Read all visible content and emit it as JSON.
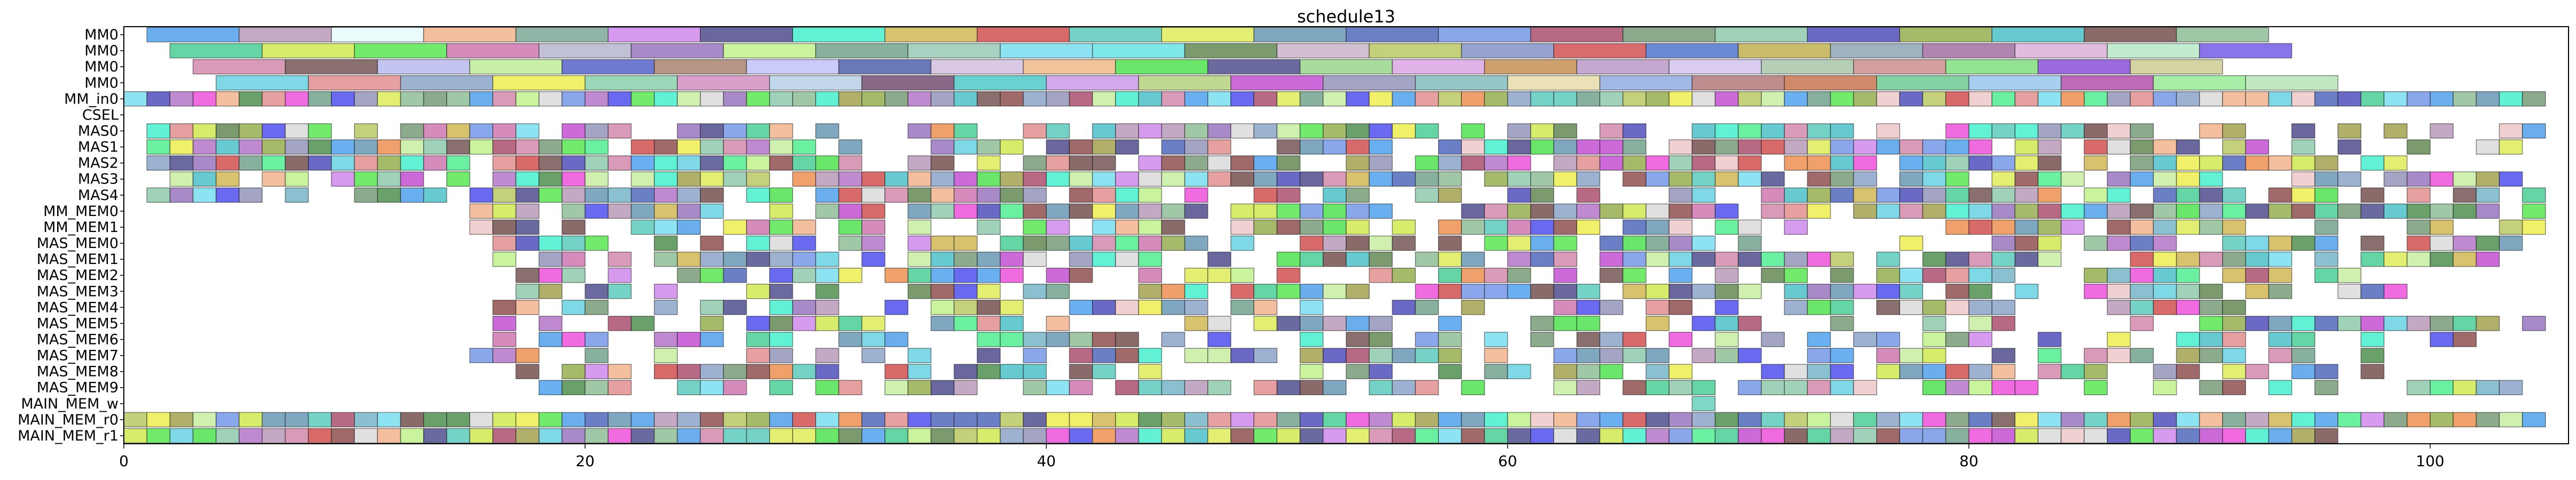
{
  "chart_data": {
    "type": "gantt",
    "title": "schedule13",
    "xlabel": "",
    "ylabel": "",
    "xlim": [
      0,
      106
    ],
    "x_ticks": [
      0,
      20,
      40,
      60,
      80,
      100
    ],
    "grid": false,
    "legend": "none",
    "rows": [
      {
        "label": "MM0",
        "bars": [
          [
            1,
            5,
            "#6aaeee"
          ],
          [
            5,
            9,
            "#c4a9c4"
          ],
          [
            9,
            13,
            "#e9fbfb"
          ],
          [
            13,
            17,
            "#f3bf9f"
          ],
          [
            17,
            21,
            "#8fb5a6"
          ],
          [
            21,
            25,
            "#d69bef"
          ],
          [
            25,
            29,
            "#6a679e"
          ],
          [
            29,
            33,
            "#62f1d4"
          ],
          [
            33,
            37,
            "#d8c26d"
          ],
          [
            37,
            41,
            "#d96a6a"
          ],
          [
            41,
            45,
            "#75d2c6"
          ],
          [
            45,
            49,
            "#e3ef72"
          ],
          [
            49,
            53,
            "#7fa7c0"
          ],
          [
            53,
            57,
            "#6b7fc7"
          ],
          [
            57,
            61,
            "#8aa7ec"
          ],
          [
            61,
            65,
            "#b86a84"
          ],
          [
            65,
            69,
            "#8caa8c"
          ],
          [
            69,
            73,
            "#9fd2b9"
          ],
          [
            73,
            77,
            "#6a69c6"
          ],
          [
            77,
            81,
            "#a6bb6a"
          ],
          [
            81,
            85,
            "#66cad0"
          ],
          [
            85,
            89,
            "#8b6a6a"
          ],
          [
            89,
            93,
            "#a0c8a7"
          ]
        ]
      },
      {
        "label": "MM0",
        "bars": [
          [
            2,
            6,
            "#66d5a5"
          ],
          [
            6,
            10,
            "#d6ec6a"
          ],
          [
            10,
            14,
            "#72eb6c"
          ],
          [
            14,
            18,
            "#d58cbd"
          ],
          [
            18,
            22,
            "#c0c0d7"
          ],
          [
            22,
            26,
            "#a98ac8"
          ],
          [
            26,
            30,
            "#c9f39d"
          ],
          [
            30,
            34,
            "#87b09e"
          ],
          [
            34,
            38,
            "#a7d1c0"
          ],
          [
            38,
            42,
            "#8ee3f2"
          ],
          [
            42,
            46,
            "#7ee8e8"
          ],
          [
            46,
            50,
            "#7b9b6f"
          ],
          [
            50,
            54,
            "#d2bfd2"
          ],
          [
            54,
            58,
            "#c5d07a"
          ],
          [
            58,
            62,
            "#96a3cf"
          ],
          [
            62,
            66,
            "#d86b6b"
          ],
          [
            66,
            70,
            "#6b8ad4"
          ],
          [
            70,
            74,
            "#c9bc6a"
          ],
          [
            74,
            78,
            "#9fb2bf"
          ],
          [
            78,
            82,
            "#b086b0"
          ],
          [
            82,
            86,
            "#e2bcdf"
          ],
          [
            86,
            90,
            "#c2ecd0"
          ],
          [
            90,
            94,
            "#8a74eb"
          ]
        ]
      },
      {
        "label": "MM0",
        "bars": [
          [
            3,
            7,
            "#d99bb8"
          ],
          [
            7,
            11,
            "#8a6f6f"
          ],
          [
            11,
            15,
            "#c4c4f1"
          ],
          [
            15,
            19,
            "#c8f0a6"
          ],
          [
            19,
            23,
            "#6f7ad2"
          ],
          [
            23,
            27,
            "#b59684"
          ],
          [
            27,
            31,
            "#cbcbfa"
          ],
          [
            31,
            35,
            "#6a7ab8"
          ],
          [
            35,
            39,
            "#d9c8e4"
          ],
          [
            39,
            43,
            "#f0c498"
          ],
          [
            43,
            47,
            "#6ae66a"
          ],
          [
            47,
            51,
            "#6a6aa0"
          ],
          [
            51,
            55,
            "#a8dc9c"
          ],
          [
            55,
            59,
            "#e1b3e8"
          ],
          [
            59,
            63,
            "#cfa06d"
          ],
          [
            63,
            67,
            "#c5a8cf"
          ],
          [
            67,
            71,
            "#d9ccf0"
          ],
          [
            71,
            75,
            "#b6cdb6"
          ],
          [
            75,
            79,
            "#d49f9f"
          ],
          [
            79,
            83,
            "#93e393"
          ],
          [
            83,
            87,
            "#9c6adc"
          ],
          [
            87,
            91,
            "#d4d4a3"
          ]
        ]
      },
      {
        "label": "MM0",
        "bars": [
          [
            4,
            8,
            "#7fd8e6"
          ],
          [
            8,
            12,
            "#e7a0a0"
          ],
          [
            12,
            16,
            "#9db1d1"
          ],
          [
            16,
            20,
            "#f0f06a"
          ],
          [
            20,
            24,
            "#9ad6b7"
          ],
          [
            24,
            28,
            "#d9a0cc"
          ],
          [
            28,
            32,
            "#c3d7ea"
          ],
          [
            32,
            36,
            "#886a88"
          ],
          [
            36,
            40,
            "#6ad1d1"
          ],
          [
            40,
            44,
            "#d3a9ec"
          ],
          [
            44,
            48,
            "#c0d891"
          ],
          [
            48,
            52,
            "#cb6ad8"
          ],
          [
            52,
            56,
            "#a4a4c4"
          ],
          [
            56,
            60,
            "#97c6c6"
          ],
          [
            60,
            64,
            "#eae1b6"
          ],
          [
            64,
            68,
            "#a2b9e6"
          ],
          [
            68,
            72,
            "#bf8d8d"
          ],
          [
            72,
            76,
            "#d08a6a"
          ],
          [
            76,
            80,
            "#84d1a3"
          ],
          [
            80,
            84,
            "#a8cff0"
          ],
          [
            84,
            88,
            "#bd6ab9"
          ],
          [
            88,
            92,
            "#a6eea6"
          ],
          [
            92,
            96,
            "#c1e8c1"
          ]
        ]
      },
      {
        "label": "MM_in0",
        "pattern": "full",
        "start": 0,
        "end": 105,
        "seed": 1
      },
      {
        "label": "CSEL",
        "bars": []
      },
      {
        "label": "MAS0",
        "pattern": "sparse",
        "start": 1,
        "end": 105,
        "seed": 2,
        "density": 0.72
      },
      {
        "label": "MAS1",
        "pattern": "sparse",
        "start": 1,
        "end": 104,
        "seed": 3,
        "density": 0.8
      },
      {
        "label": "MAS2",
        "pattern": "sparse",
        "start": 1,
        "end": 100,
        "seed": 4,
        "density": 0.78
      },
      {
        "label": "MAS3",
        "pattern": "sparse",
        "start": 1,
        "end": 104,
        "seed": 5,
        "density": 0.8
      },
      {
        "label": "MAS4",
        "pattern": "sparse",
        "start": 1,
        "end": 106,
        "seed": 6,
        "density": 0.75
      },
      {
        "label": "MM_MEM0",
        "pattern": "sparse",
        "start": 15,
        "end": 105,
        "seed": 7,
        "density": 0.85
      },
      {
        "label": "MM_MEM1",
        "pattern": "sparse",
        "start": 15,
        "end": 105,
        "seed": 8,
        "density": 0.72
      },
      {
        "label": "MAS_MEM0",
        "pattern": "sparse",
        "start": 16,
        "end": 104,
        "seed": 9,
        "density": 0.7
      },
      {
        "label": "MAS_MEM1",
        "pattern": "sparse",
        "start": 16,
        "end": 103,
        "seed": 10,
        "density": 0.68
      },
      {
        "label": "MAS_MEM2",
        "pattern": "sparse",
        "start": 16,
        "end": 98,
        "seed": 11,
        "density": 0.66
      },
      {
        "label": "MAS_MEM3",
        "pattern": "sparse",
        "start": 16,
        "end": 99,
        "seed": 12,
        "density": 0.68
      },
      {
        "label": "MAS_MEM4",
        "pattern": "sparse",
        "start": 16,
        "end": 92,
        "seed": 13,
        "density": 0.62
      },
      {
        "label": "MAS_MEM5",
        "pattern": "sparse",
        "start": 16,
        "end": 105,
        "seed": 14,
        "density": 0.62
      },
      {
        "label": "MAS_MEM6",
        "pattern": "sparse",
        "start": 16,
        "end": 102,
        "seed": 15,
        "density": 0.64
      },
      {
        "label": "MAS_MEM7",
        "pattern": "sparse",
        "start": 15,
        "end": 98,
        "seed": 16,
        "density": 0.62
      },
      {
        "label": "MAS_MEM8",
        "pattern": "sparse",
        "start": 16,
        "end": 98,
        "seed": 17,
        "density": 0.6
      },
      {
        "label": "MAS_MEM9",
        "pattern": "sparse",
        "start": 16,
        "end": 104,
        "seed": 18,
        "density": 0.64
      },
      {
        "label": "MAIN_MEM_w",
        "bars": [
          [
            68,
            69,
            "#7fd8c6"
          ]
        ]
      },
      {
        "label": "MAIN_MEM_r0",
        "pattern": "full",
        "start": 0,
        "end": 105,
        "seed": 19
      },
      {
        "label": "MAIN_MEM_r1",
        "pattern": "full",
        "start": 0,
        "end": 96,
        "seed": 20
      }
    ]
  }
}
